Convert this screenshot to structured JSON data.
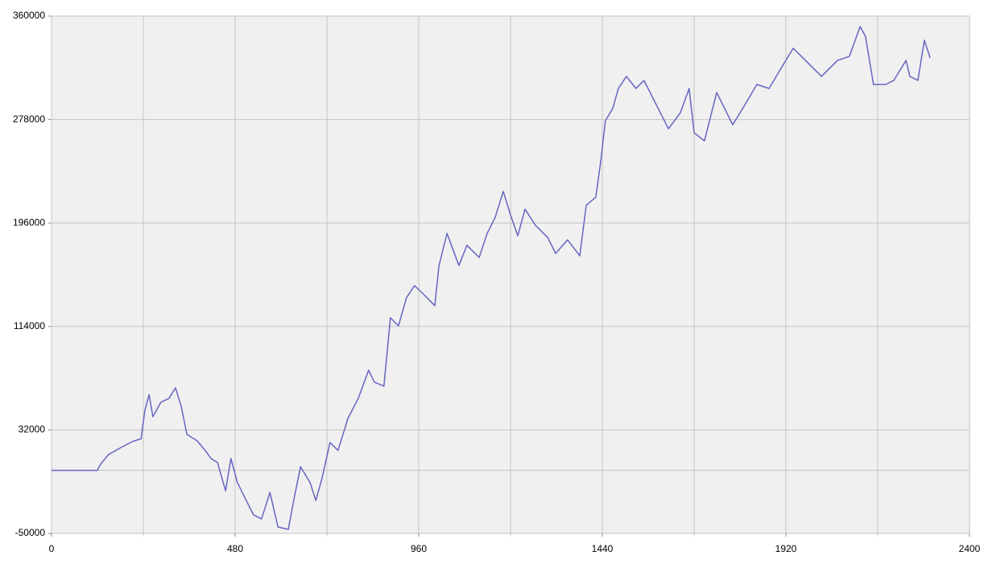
{
  "chart_data": {
    "type": "line",
    "x": [
      0,
      120,
      128,
      149,
      181,
      213,
      234,
      244,
      255,
      265,
      286,
      307,
      324,
      339,
      354,
      381,
      402,
      417,
      434,
      455,
      469,
      486,
      507,
      528,
      549,
      571,
      592,
      619,
      634,
      651,
      676,
      691,
      707,
      728,
      749,
      775,
      802,
      829,
      844,
      869,
      886,
      907,
      928,
      949,
      971,
      1002,
      1013,
      1034,
      1065,
      1086,
      1118,
      1139,
      1160,
      1181,
      1202,
      1219,
      1238,
      1265,
      1297,
      1318,
      1349,
      1381,
      1398,
      1423,
      1436,
      1448,
      1467,
      1482,
      1503,
      1528,
      1549,
      1581,
      1613,
      1644,
      1667,
      1680,
      1707,
      1739,
      1781,
      1813,
      1844,
      1876,
      1907,
      1939,
      1971,
      2013,
      2055,
      2086,
      2114,
      2128,
      2149,
      2181,
      2202,
      2234,
      2244,
      2265,
      2282,
      2297
    ],
    "series": [
      {
        "color": "#6565c2",
        "values": [
          0,
          0,
          4800,
          12500,
          18000,
          23000,
          25000,
          47500,
          60000,
          42500,
          54000,
          57000,
          65400,
          50700,
          28400,
          23300,
          15700,
          9300,
          6100,
          -16200,
          9300,
          -9800,
          -22600,
          -35300,
          -38500,
          -17500,
          -44900,
          -46800,
          -22600,
          2900,
          -9800,
          -23900,
          -6600,
          22000,
          15700,
          41200,
          57100,
          79400,
          69900,
          66700,
          120900,
          114500,
          136800,
          146400,
          140000,
          130500,
          162300,
          187800,
          162300,
          178300,
          168700,
          187800,
          200600,
          221000,
          200600,
          185900,
          207000,
          194200,
          184600,
          171900,
          182700,
          170000,
          210100,
          216500,
          245200,
          277100,
          286600,
          302600,
          312200,
          302600,
          309000,
          289800,
          270700,
          283400,
          302600,
          267500,
          261100,
          299400,
          273900,
          289800,
          305800,
          302600,
          318500,
          334500,
          324900,
          312200,
          324900,
          328100,
          351700,
          344000,
          305800,
          305800,
          309000,
          324900,
          312200,
          309000,
          340900,
          326900
        ]
      }
    ],
    "xlim": [
      0,
      2400
    ],
    "xticks": [
      0,
      480,
      960,
      1440,
      1920,
      2400
    ],
    "ylim": [
      -50000,
      360000
    ],
    "yticks": [
      -50000,
      32000,
      114000,
      196000,
      278000,
      360000
    ],
    "xgrid": [
      240,
      720,
      1200,
      1680,
      2160
    ],
    "ygrid": [
      0
    ],
    "grid": true
  }
}
